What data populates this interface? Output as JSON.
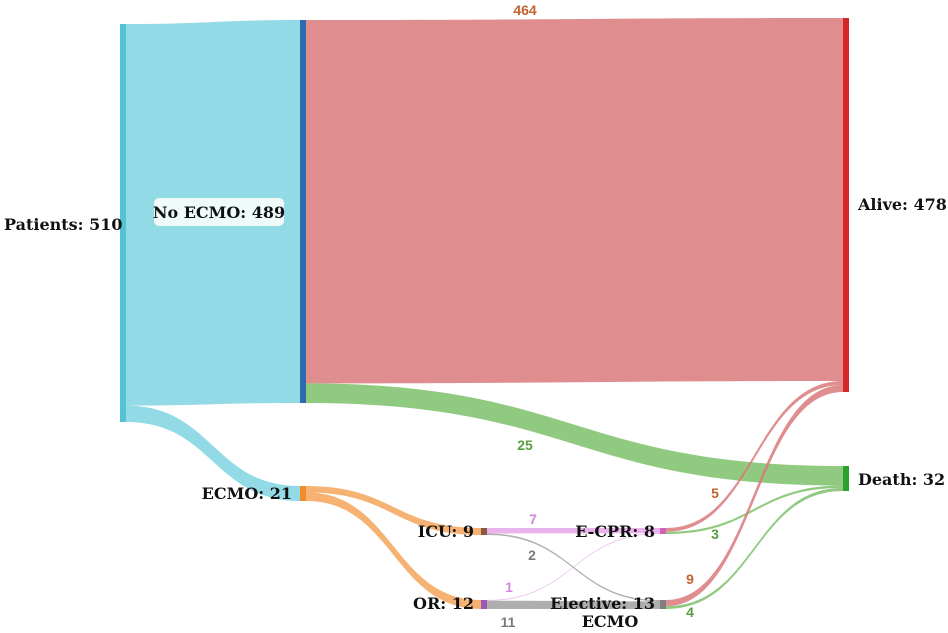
{
  "chart_data": {
    "type": "sankey",
    "nodes": [
      {
        "id": "patients",
        "label": "Patients: 510",
        "value": 510,
        "color": "#55c3d6"
      },
      {
        "id": "no_ecmo",
        "label": "No ECMO: 489",
        "value": 489,
        "color": "#2d6bb0"
      },
      {
        "id": "ecmo",
        "label": "ECMO: 21",
        "value": 21,
        "color": "#f28c28"
      },
      {
        "id": "icu",
        "label": "ICU: 9",
        "value": 9,
        "color": "#8b5a3c"
      },
      {
        "id": "or",
        "label": "OR: 12",
        "value": 12,
        "color": "#9b59b6"
      },
      {
        "id": "ecpr",
        "label": "E-CPR: 8",
        "value": 8,
        "color": "#d35fb7"
      },
      {
        "id": "elective",
        "label": "Elective: 13",
        "label2": "ECMO",
        "value": 13,
        "color": "#7f7f7f"
      },
      {
        "id": "alive",
        "label": "Alive: 478",
        "value": 478,
        "color": "#d62728"
      },
      {
        "id": "death",
        "label": "Death: 32",
        "value": 32,
        "color": "#2ca02c"
      }
    ],
    "links": [
      {
        "source": "patients",
        "target": "no_ecmo",
        "value": 489,
        "label": "",
        "color": "#7fd3e0"
      },
      {
        "source": "patients",
        "target": "ecmo",
        "value": 21,
        "label": "",
        "color": "#7fd3e0"
      },
      {
        "source": "no_ecmo",
        "target": "alive",
        "value": 464,
        "label": "464",
        "color": "#d9797a",
        "label_color": "#c0642a"
      },
      {
        "source": "no_ecmo",
        "target": "death",
        "value": 25,
        "label": "25",
        "color": "#7cbf6a",
        "label_color": "#5a9e3e"
      },
      {
        "source": "ecmo",
        "target": "icu",
        "value": 9,
        "label": "",
        "color": "#f5a55a"
      },
      {
        "source": "ecmo",
        "target": "or",
        "value": 12,
        "label": "",
        "color": "#f5a55a"
      },
      {
        "source": "icu",
        "target": "ecpr",
        "value": 7,
        "label": "7",
        "color": "#e6a6e8",
        "label_color": "#d08ad8"
      },
      {
        "source": "icu",
        "target": "elective",
        "value": 2,
        "label": "2",
        "color": "#a0a0a0",
        "label_color": "#7a7a7a"
      },
      {
        "source": "or",
        "target": "ecpr",
        "value": 1,
        "label": "1",
        "color": "#e6a6e8",
        "label_color": "#d08ad8"
      },
      {
        "source": "or",
        "target": "elective",
        "value": 11,
        "label": "11",
        "color": "#a0a0a0",
        "label_color": "#7a7a7a"
      },
      {
        "source": "ecpr",
        "target": "alive",
        "value": 5,
        "label": "5",
        "color": "#d9797a",
        "label_color": "#c0642a"
      },
      {
        "source": "ecpr",
        "target": "death",
        "value": 3,
        "label": "3",
        "color": "#7cbf6a",
        "label_color": "#5a9e3e"
      },
      {
        "source": "elective",
        "target": "alive",
        "value": 9,
        "label": "9",
        "color": "#d9797a",
        "label_color": "#c0642a"
      },
      {
        "source": "elective",
        "target": "death",
        "value": 4,
        "label": "4",
        "color": "#7cbf6a",
        "label_color": "#5a9e3e"
      }
    ]
  }
}
